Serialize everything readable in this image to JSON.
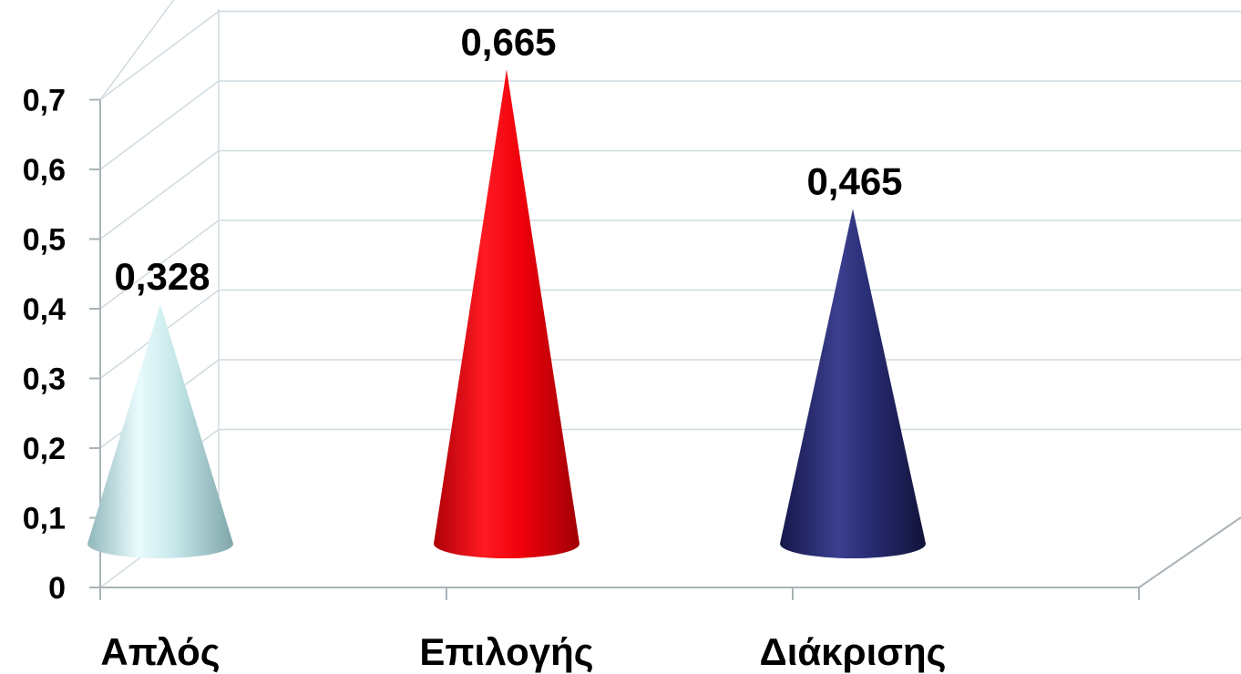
{
  "chart_data": {
    "type": "bar",
    "bar_shape": "cone",
    "perspective": "3d",
    "categories": [
      "Απλός",
      "Επιλογής",
      "Διάκρισης"
    ],
    "values": [
      0.328,
      0.665,
      0.465
    ],
    "data_labels": [
      "0,328",
      "0,665",
      "0,465"
    ],
    "ylim": [
      0,
      0.7
    ],
    "yticks": [
      0,
      0.1,
      0.2,
      0.3,
      0.4,
      0.5,
      0.6,
      0.7
    ],
    "ytick_labels": [
      "0",
      "0,1",
      "0,2",
      "0,3",
      "0,4",
      "0,5",
      "0,6",
      "0,7"
    ],
    "title": "",
    "xlabel": "",
    "ylabel": "",
    "grid": true,
    "legend": "none",
    "colors": [
      "#bfe3e6",
      "#e8000b",
      "#262a6e"
    ]
  }
}
